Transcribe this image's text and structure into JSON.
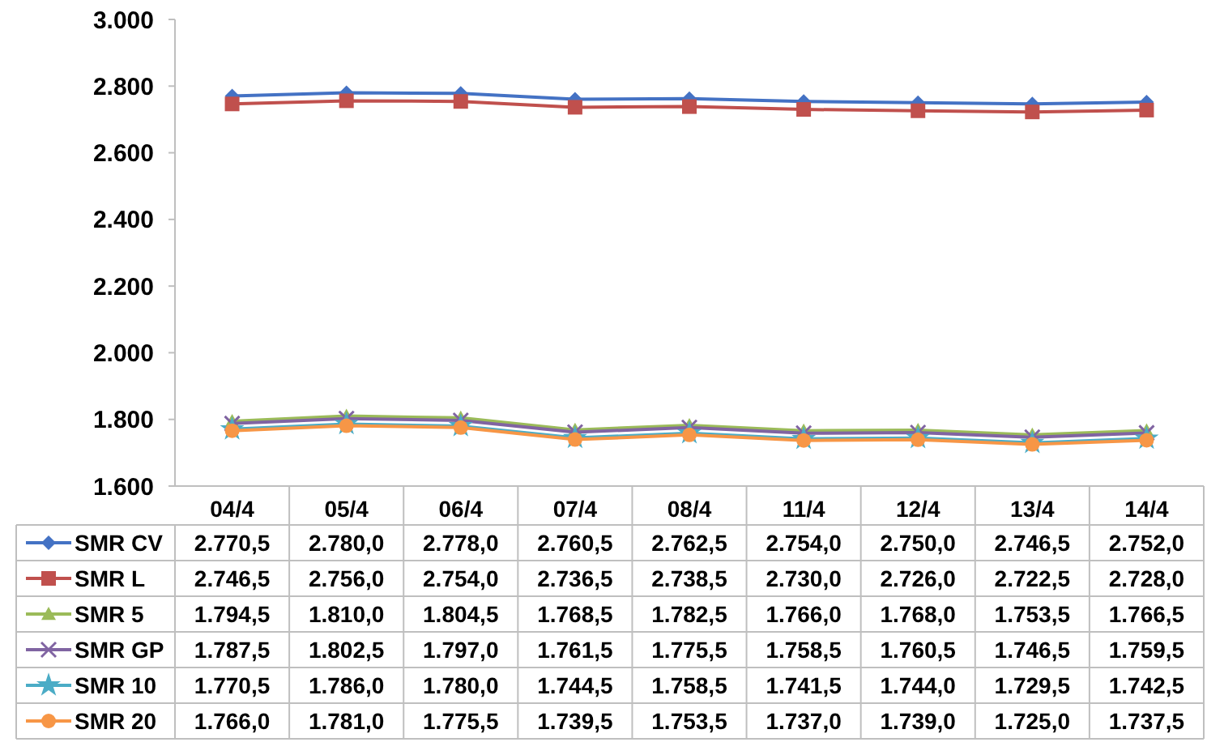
{
  "chart_data": {
    "type": "line",
    "categories": [
      "04/4",
      "05/4",
      "06/4",
      "07/4",
      "08/4",
      "11/4",
      "12/4",
      "13/4",
      "14/4"
    ],
    "ylim": [
      1600,
      3000
    ],
    "yticks": [
      {
        "value": 1600,
        "label": "1.600"
      },
      {
        "value": 1800,
        "label": "1.800"
      },
      {
        "value": 2000,
        "label": "2.000"
      },
      {
        "value": 2200,
        "label": "2.200"
      },
      {
        "value": 2400,
        "label": "2.400"
      },
      {
        "value": 2600,
        "label": "2.600"
      },
      {
        "value": 2800,
        "label": "2.800"
      },
      {
        "value": 3000,
        "label": "3.000"
      }
    ],
    "grid": false,
    "legend": "bottom",
    "line_style": "solid",
    "series": [
      {
        "name": "SMR CV",
        "color": "#4472c4",
        "marker": "diamond",
        "values": [
          2770.5,
          2780.0,
          2778.0,
          2760.5,
          2762.5,
          2754.0,
          2750.0,
          2746.5,
          2752.0
        ],
        "value_labels": [
          "2.770,5",
          "2.780,0",
          "2.778,0",
          "2.760,5",
          "2.762,5",
          "2.754,0",
          "2.750,0",
          "2.746,5",
          "2.752,0"
        ]
      },
      {
        "name": "SMR L",
        "color": "#c0504d",
        "marker": "square",
        "values": [
          2746.5,
          2756.0,
          2754.0,
          2736.5,
          2738.5,
          2730.0,
          2726.0,
          2722.5,
          2728.0
        ],
        "value_labels": [
          "2.746,5",
          "2.756,0",
          "2.754,0",
          "2.736,5",
          "2.738,5",
          "2.730,0",
          "2.726,0",
          "2.722,5",
          "2.728,0"
        ]
      },
      {
        "name": "SMR 5",
        "color": "#9bbb59",
        "marker": "triangle",
        "values": [
          1794.5,
          1810.0,
          1804.5,
          1768.5,
          1782.5,
          1766.0,
          1768.0,
          1753.5,
          1766.5
        ],
        "value_labels": [
          "1.794,5",
          "1.810,0",
          "1.804,5",
          "1.768,5",
          "1.782,5",
          "1.766,0",
          "1.768,0",
          "1.753,5",
          "1.766,5"
        ]
      },
      {
        "name": "SMR GP",
        "color": "#8064a2",
        "marker": "cross",
        "values": [
          1787.5,
          1802.5,
          1797.0,
          1761.5,
          1775.5,
          1758.5,
          1760.5,
          1746.5,
          1759.5
        ],
        "value_labels": [
          "1.787,5",
          "1.802,5",
          "1.797,0",
          "1.761,5",
          "1.775,5",
          "1.758,5",
          "1.760,5",
          "1.746,5",
          "1.759,5"
        ]
      },
      {
        "name": "SMR 10",
        "color": "#4bacc6",
        "marker": "star",
        "values": [
          1770.5,
          1786.0,
          1780.0,
          1744.5,
          1758.5,
          1741.5,
          1744.0,
          1729.5,
          1742.5
        ],
        "value_labels": [
          "1.770,5",
          "1.786,0",
          "1.780,0",
          "1.744,5",
          "1.758,5",
          "1.741,5",
          "1.744,0",
          "1.729,5",
          "1.742,5"
        ]
      },
      {
        "name": "SMR 20",
        "color": "#f79646",
        "marker": "circle",
        "values": [
          1766.0,
          1781.0,
          1775.5,
          1739.5,
          1753.5,
          1737.0,
          1739.0,
          1725.0,
          1737.5
        ],
        "value_labels": [
          "1.766,0",
          "1.781,0",
          "1.775,5",
          "1.739,5",
          "1.753,5",
          "1.737,0",
          "1.739,0",
          "1.725,0",
          "1.737,5"
        ]
      }
    ]
  }
}
